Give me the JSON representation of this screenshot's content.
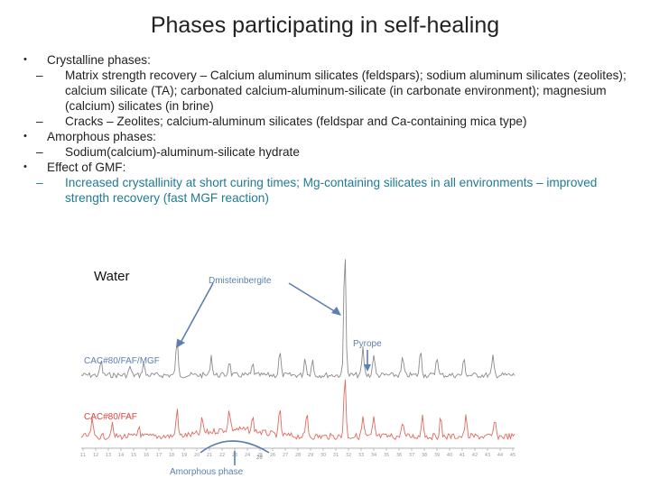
{
  "slide": {
    "title": "Phases participating in self-healing",
    "bullets": [
      {
        "text": "Crystalline phases:",
        "sub": [
          "Matrix strength recovery – Calcium aluminum silicates (feldspars); sodium aluminum silicates (zeolites); calcium silicate (TA); carbonated calcium-aluminum-silicate (in carbonate environment); magnesium (calcium) silicates (in brine)",
          "Cracks – Zeolites; calcium-aluminum silicates (feldspar and Ca-containing mica type)"
        ]
      },
      {
        "text": "Amorphous phases:",
        "sub": [
          "Sodium(calcium)-aluminum-silicate hydrate"
        ]
      },
      {
        "text": "Effect of GMF:",
        "sub": [
          "Increased crystallinity at short curing times; Mg-containing silicates in all environments – improved strength recovery (fast MGF reaction)"
        ]
      }
    ],
    "bullet_symbol": "•",
    "dash_symbol": "–"
  },
  "figure": {
    "inset_label": "Water",
    "annotations": {
      "dmisteinbergite": "Dmisteinbergite",
      "pyrope": "Pyrope",
      "amorphous": "Amorphous phase",
      "axis_label": "2θ"
    },
    "series": [
      {
        "name": "CAC#80/FAF/MGF",
        "color": "#8a8a8a",
        "label_color": "#5b7fb0"
      },
      {
        "name": "CAC#80/FAF",
        "color": "#e06a60",
        "label_color": "#d9463a"
      }
    ],
    "x_tick_labels": [
      "11",
      "12",
      "13",
      "14",
      "15",
      "16",
      "17",
      "18",
      "19",
      "20",
      "21",
      "22",
      "23",
      "24",
      "25",
      "26",
      "27",
      "28",
      "29",
      "30",
      "31",
      "32",
      "33",
      "34",
      "35",
      "36",
      "37",
      "38",
      "39",
      "40",
      "41",
      "42",
      "43",
      "44",
      "45"
    ],
    "arrow_color": "#5b7fb0"
  }
}
